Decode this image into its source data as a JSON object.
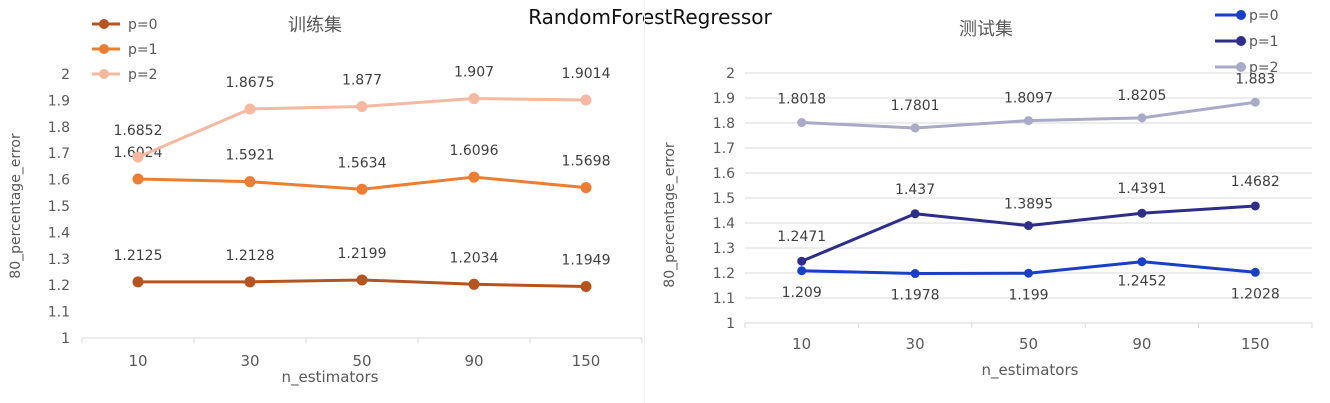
{
  "suptitle": "RandomForestRegressor",
  "chart_data": [
    {
      "type": "line",
      "title": "训练集",
      "xlabel": "n_estimators",
      "ylabel": "80_percentage_error",
      "categories": [
        "10",
        "30",
        "50",
        "90",
        "150"
      ],
      "ylim": [
        1,
        2
      ],
      "yticks": [
        "1",
        "1.1",
        "1.2",
        "1.3",
        "1.4",
        "1.5",
        "1.6",
        "1.7",
        "1.8",
        "1.9",
        "2"
      ],
      "grid": false,
      "legend_position": "top-left",
      "series": [
        {
          "name": "p=0",
          "values": [
            1.2125,
            1.2128,
            1.2199,
            1.2034,
            1.1949
          ],
          "labels": [
            "1.2125",
            "1.2128",
            "1.2199",
            "1.2034",
            "1.1949"
          ],
          "color": "#B5541F"
        },
        {
          "name": "p=1",
          "values": [
            1.6024,
            1.5921,
            1.5634,
            1.6096,
            1.5698
          ],
          "labels": [
            "1.6024",
            "1.5921",
            "1.5634",
            "1.6096",
            "1.5698"
          ],
          "color": "#ED7D31"
        },
        {
          "name": "p=2",
          "values": [
            1.6852,
            1.8675,
            1.877,
            1.907,
            1.9014
          ],
          "labels": [
            "1.6852",
            "1.8675",
            "1.877",
            "1.907",
            "1.9014"
          ],
          "color": "#F4B9A0"
        }
      ]
    },
    {
      "type": "line",
      "title": "测试集",
      "xlabel": "n_estimators",
      "ylabel": "80_percentage_error",
      "categories": [
        "10",
        "30",
        "50",
        "90",
        "150"
      ],
      "ylim": [
        1,
        2
      ],
      "yticks": [
        "1",
        "1.1",
        "1.2",
        "1.3",
        "1.4",
        "1.5",
        "1.6",
        "1.7",
        "1.8",
        "1.9",
        "2"
      ],
      "grid": true,
      "legend_position": "top-right",
      "series": [
        {
          "name": "p=0",
          "values": [
            1.209,
            1.1978,
            1.199,
            1.2452,
            1.2028
          ],
          "labels": [
            "1.209",
            "1.1978",
            "1.199",
            "1.2452",
            "1.2028"
          ],
          "color": "#1A3FC7"
        },
        {
          "name": "p=1",
          "values": [
            1.2471,
            1.437,
            1.3895,
            1.4391,
            1.4682
          ],
          "labels": [
            "1.2471",
            "1.437",
            "1.3895",
            "1.4391",
            "1.4682"
          ],
          "color": "#2E2E8A"
        },
        {
          "name": "p=2",
          "values": [
            1.8018,
            1.7801,
            1.8097,
            1.8205,
            1.883
          ],
          "labels": [
            "1.8018",
            "1.7801",
            "1.8097",
            "1.8205",
            "1.883"
          ],
          "color": "#A9A9C8"
        }
      ]
    }
  ]
}
